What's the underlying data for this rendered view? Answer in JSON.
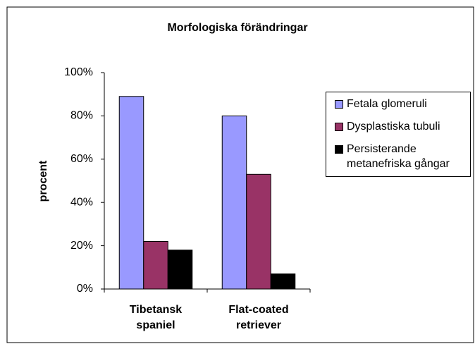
{
  "chart_data": {
    "type": "bar",
    "title": "Morfologiska förändringar",
    "ylabel": "procent",
    "categories": [
      "Tibetansk spaniel",
      "Flat-coated retriever"
    ],
    "series": [
      {
        "name": "Fetala glomeruli",
        "color": "#9999ff",
        "values": [
          89,
          80
        ]
      },
      {
        "name": "Dysplastiska tubuli",
        "color": "#993366",
        "values": [
          22,
          53
        ]
      },
      {
        "name": "Persisterande metanefriska gångar",
        "color": "#000000",
        "values": [
          18,
          7
        ]
      }
    ],
    "ylim": [
      0,
      100
    ],
    "yticks": [
      {
        "value": 0,
        "label": "0%"
      },
      {
        "value": 20,
        "label": "20%"
      },
      {
        "value": 40,
        "label": "40%"
      },
      {
        "value": 60,
        "label": "60%"
      },
      {
        "value": 80,
        "label": "80%"
      },
      {
        "value": 100,
        "label": "100%"
      }
    ],
    "legend": "right"
  }
}
